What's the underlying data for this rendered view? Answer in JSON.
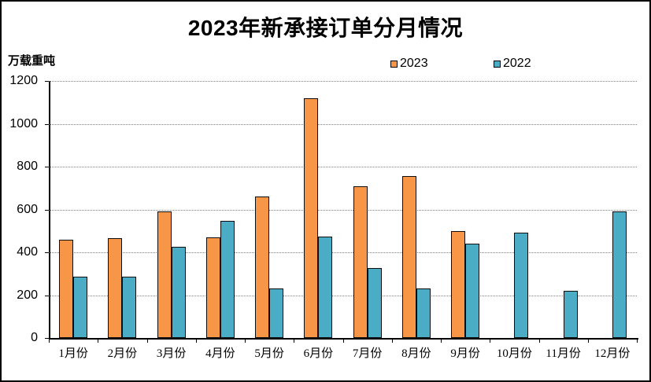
{
  "chart_data": {
    "type": "bar",
    "title": "2023年新承接订单分月情况",
    "ylabel": "万载重吨",
    "xlabel": "",
    "categories": [
      "1月份",
      "2月份",
      "3月份",
      "4月份",
      "5月份",
      "6月份",
      "7月份",
      "8月份",
      "9月份",
      "10月份",
      "11月份",
      "12月份"
    ],
    "series": [
      {
        "name": "2023",
        "color": "#F79646",
        "values": [
          460,
          465,
          590,
          470,
          660,
          1120,
          710,
          755,
          500,
          null,
          null,
          null
        ]
      },
      {
        "name": "2022",
        "color": "#4BACC6",
        "values": [
          285,
          285,
          425,
          545,
          230,
          475,
          325,
          230,
          440,
          490,
          220,
          590
        ]
      }
    ],
    "ylim": [
      0,
      1200
    ],
    "yticks": [
      0,
      200,
      400,
      600,
      800,
      1000,
      1200
    ],
    "grid": "horizontal-dotted",
    "gridline_color": "#7f7f7f",
    "bar_border_color": "#0d0d0d",
    "legend_position": "top-center"
  }
}
